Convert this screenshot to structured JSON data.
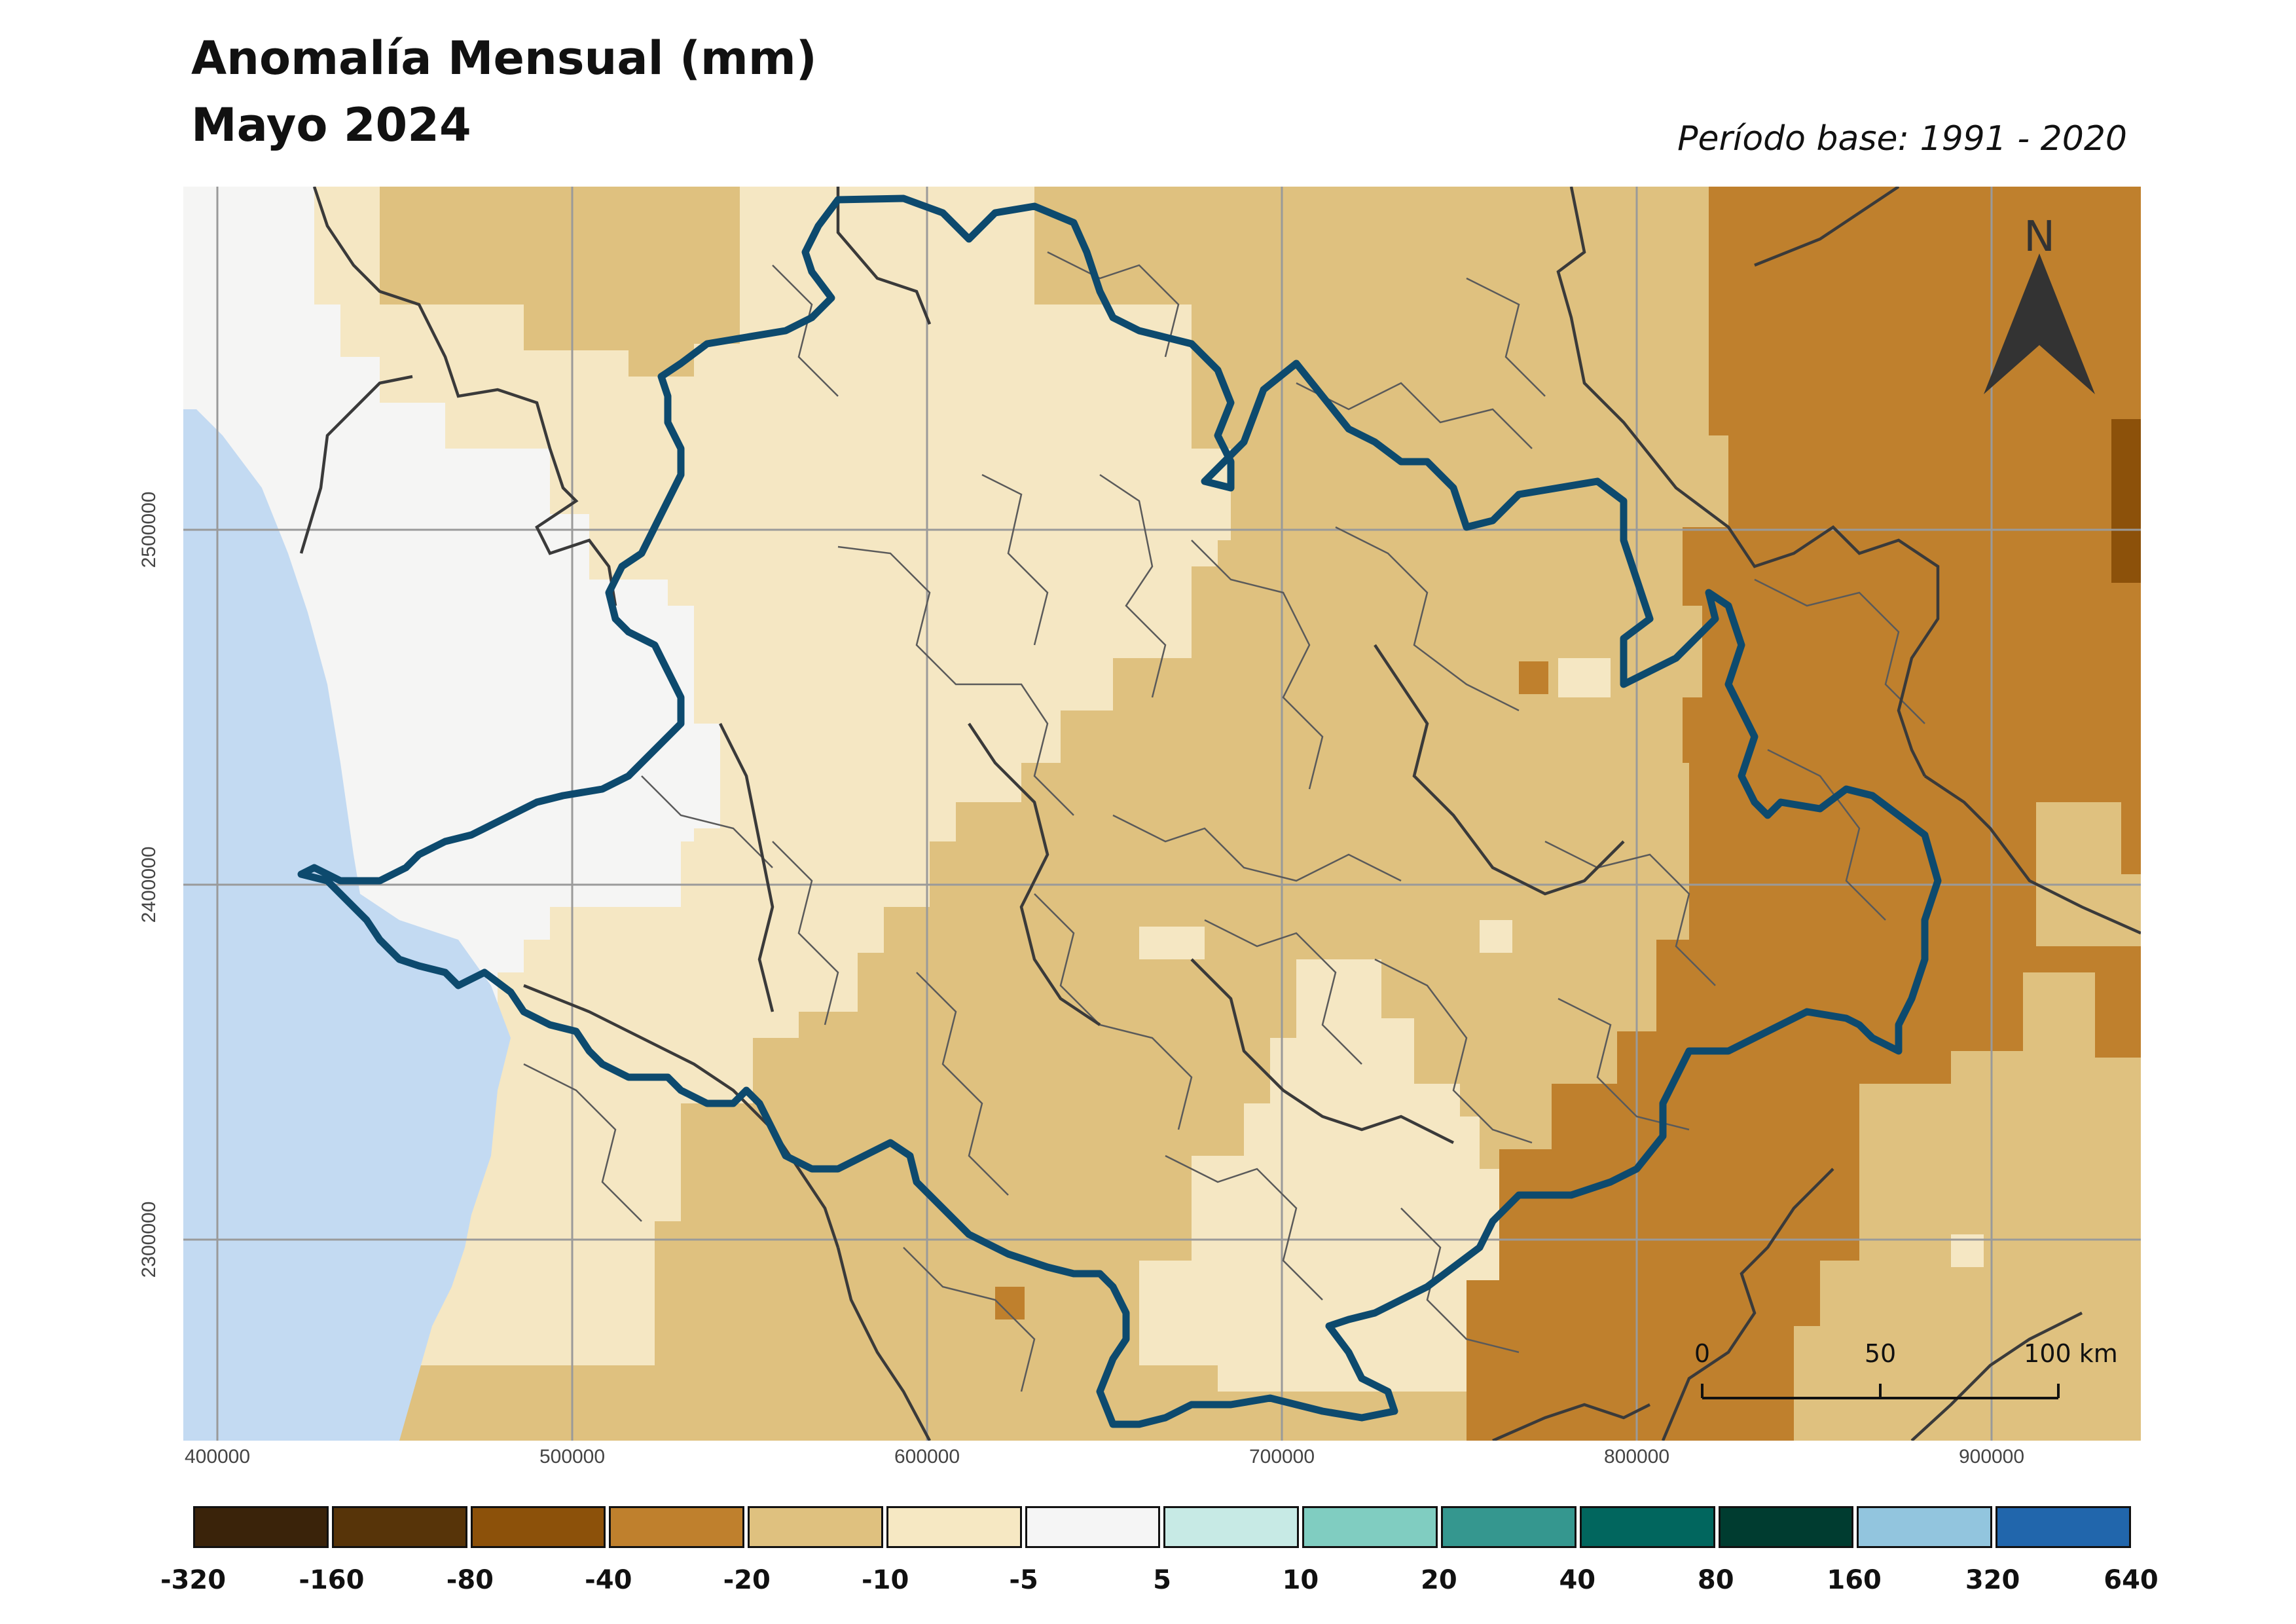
{
  "title": "Anomalía Mensual (mm)",
  "subtitle": "Mayo 2024",
  "base_period": "Período base: 1991 - 2020",
  "map": {
    "y_ticks": [
      "2500000",
      "2400000",
      "2300000"
    ],
    "x_ticks": [
      "400000",
      "500000",
      "600000",
      "700000",
      "800000",
      "900000"
    ],
    "north_label": "N",
    "scale_bar": {
      "labels": [
        "0",
        "50",
        "100 km"
      ]
    },
    "colors": {
      "ocean": "#c3daf2",
      "no_data_land": "#f5f5f4",
      "anomaly_minus10_minus5": "#f5e7c3",
      "anomaly_minus20_minus10": "#dfc17f",
      "anomaly_minus40_minus20": "#bf802d",
      "anomaly_minus80_minus40": "#8c510a",
      "state_boundary": "#0d4a6e",
      "municipal_boundary": "#555555",
      "grid": "#9a9a9a"
    }
  },
  "legend": {
    "classes": [
      {
        "from": "-320",
        "to": "-160",
        "color": "#3a230a"
      },
      {
        "from": "-160",
        "to": "-80",
        "color": "#573409"
      },
      {
        "from": "-80",
        "to": "-40",
        "color": "#8c510a"
      },
      {
        "from": "-40",
        "to": "-20",
        "color": "#bf802d"
      },
      {
        "from": "-20",
        "to": "-10",
        "color": "#dfc17f"
      },
      {
        "from": "-10",
        "to": "-5",
        "color": "#f6e8c3"
      },
      {
        "from": "-5",
        "to": "5",
        "color": "#f5f5f5"
      },
      {
        "from": "5",
        "to": "10",
        "color": "#c7eae5"
      },
      {
        "from": "10",
        "to": "20",
        "color": "#80cdc1"
      },
      {
        "from": "20",
        "to": "40",
        "color": "#35978f"
      },
      {
        "from": "40",
        "to": "80",
        "color": "#01665e"
      },
      {
        "from": "80",
        "to": "160",
        "color": "#003c30"
      },
      {
        "from": "160",
        "to": "320",
        "color": "#92c5de"
      },
      {
        "from": "320",
        "to": "640",
        "color": "#2166ac"
      }
    ],
    "labels": [
      "-320",
      "-160",
      "-80",
      "-40",
      "-20",
      "-10",
      "-5",
      "5",
      "10",
      "20",
      "40",
      "80",
      "160",
      "320",
      "640"
    ]
  }
}
